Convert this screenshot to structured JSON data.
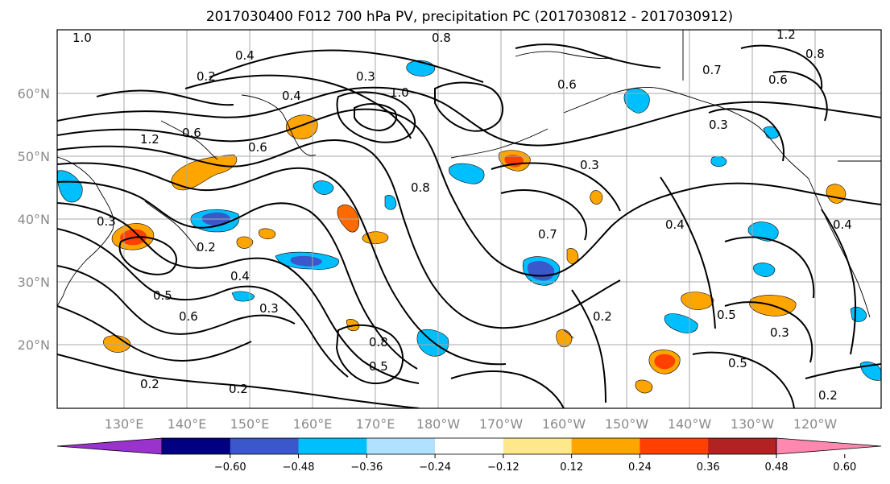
{
  "title": "2017030400 F012 700 hPa PV, precipitation PC (2017030812 - 2017030912)",
  "lat_labels": [
    "60°N",
    "50°N",
    "40°N",
    "30°N",
    "20°N"
  ],
  "lon_labels": [
    "130°E",
    "140°E",
    "150°E",
    "160°E",
    "170°E",
    "180°W",
    "170°W",
    "160°W",
    "150°W",
    "140°W",
    "130°W",
    "120°W"
  ],
  "colorbar": {
    "ticks": [
      "−0.60",
      "−0.48",
      "−0.36",
      "−0.24",
      "−0.12",
      "0.12",
      "0.24",
      "0.36",
      "0.48",
      "0.60"
    ],
    "colors": [
      "#9a32cd",
      "#000080",
      "#3a58cc",
      "#00bfff",
      "#b0e2ff",
      "#ffffff",
      "#ffe88a",
      "#ffa500",
      "#ff4000",
      "#b22222",
      "#ff88b0"
    ]
  },
  "contour_labels": [
    "1.0",
    "0.4",
    "0.2",
    "0.3",
    "0.8",
    "1.2",
    "0.6",
    "0.4",
    "0.7",
    "0.2",
    "1.0",
    "1.2",
    "0.8",
    "0.6",
    "0.3",
    "0.6",
    "0.8",
    "0.6",
    "0.4",
    "0.7",
    "0.3",
    "0.5",
    "0.6",
    "0.3",
    "0.2",
    "0.2",
    "0.5",
    "0.4",
    "0.3",
    "0.5",
    "0.3",
    "0.2",
    "0.2",
    "0.5",
    "0.8",
    "0.4"
  ]
}
